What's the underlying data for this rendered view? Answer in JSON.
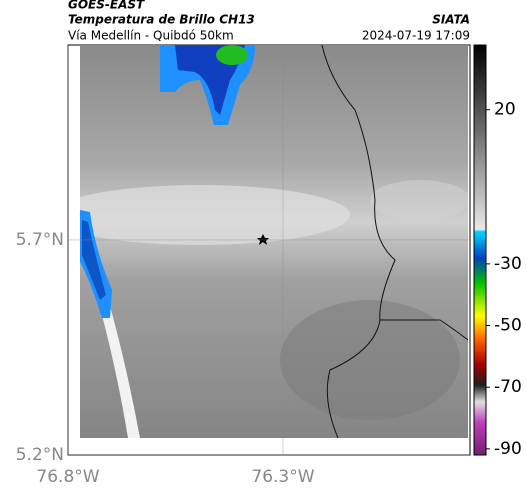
{
  "header": {
    "source": "GOES-EAST",
    "title": "Temperatura de Brillo CH13",
    "subtitle": "Vía Medellín - Quibdó 50km",
    "agency": "SIATA",
    "timestamp": "2024-07-19 17:09"
  },
  "map": {
    "xlim": [
      -76.8,
      -75.865
    ],
    "ylim": [
      5.2,
      6.153
    ],
    "xticks": [
      {
        "value": -76.8,
        "label": "76.8°W"
      },
      {
        "value": -76.3,
        "label": "76.3°W"
      }
    ],
    "yticks": [
      {
        "value": 5.2,
        "label": "5.2°N"
      },
      {
        "value": 5.7,
        "label": "5.7°N"
      }
    ]
  },
  "colorbar": {
    "lim": [
      -92,
      41
    ],
    "ticks": [
      20,
      -30,
      -50,
      -70,
      -90
    ]
  }
}
